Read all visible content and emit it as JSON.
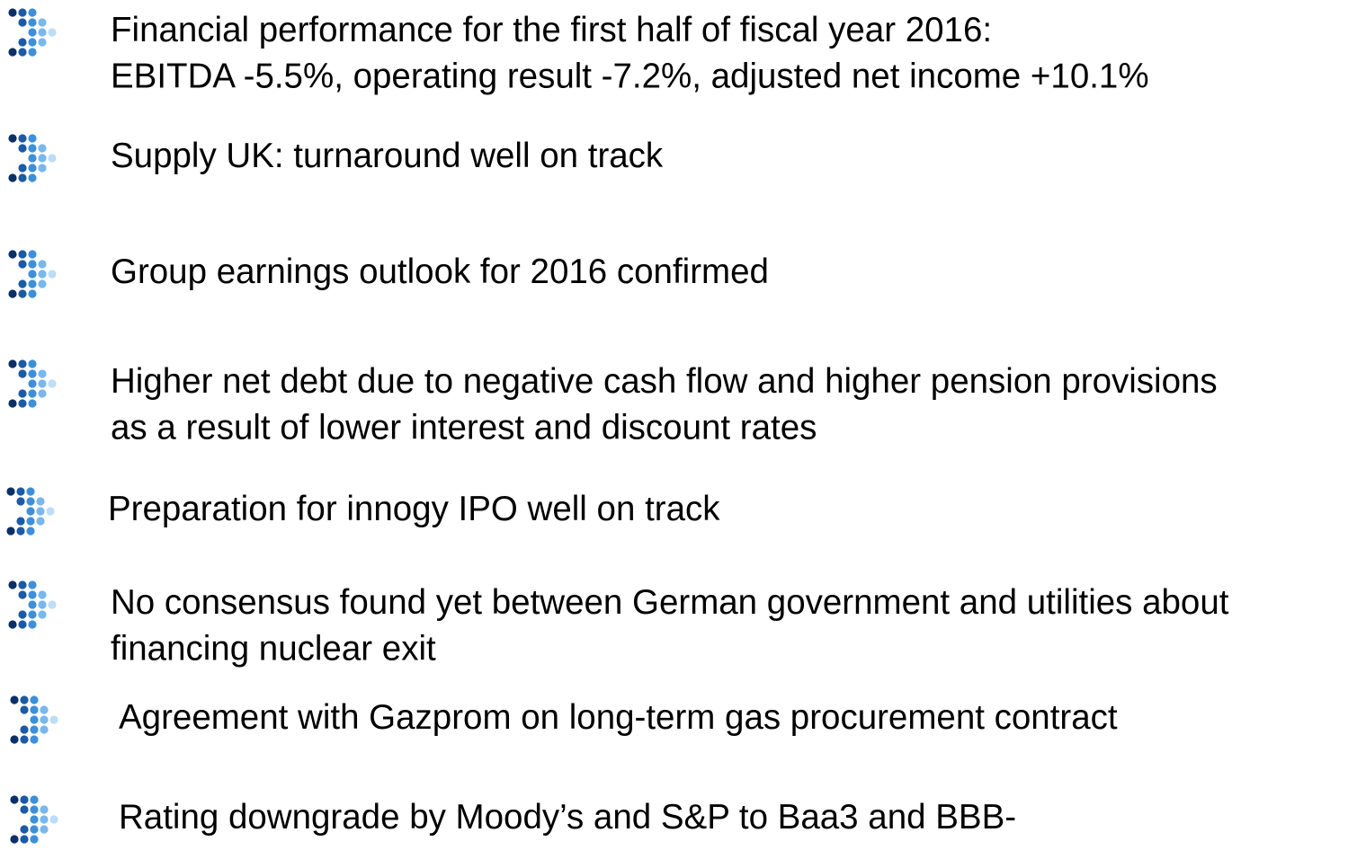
{
  "bullets": [
    {
      "lines": [
        "Financial performance for the first half of fiscal year 2016:",
        "EBITDA -5.5%, operating result -7.2%, adjusted net income +10.1%"
      ]
    },
    {
      "lines": [
        "Supply UK: turnaround well on track"
      ]
    },
    {
      "lines": [
        "Group earnings outlook for 2016 confirmed"
      ]
    },
    {
      "lines": [
        "Higher net debt due to negative cash flow and higher pension provisions",
        "as a result of lower interest and discount rates"
      ]
    },
    {
      "lines": [
        "Preparation for innogy IPO well on track"
      ]
    },
    {
      "lines": [
        "No consensus found yet between German government and utilities about",
        "financing nuclear exit"
      ]
    },
    {
      "lines": [
        "Agreement with Gazprom on long-term gas procurement contract"
      ]
    },
    {
      "lines": [
        "Rating downgrade by Moody’s and S&P to Baa3 and BBB-"
      ]
    }
  ]
}
